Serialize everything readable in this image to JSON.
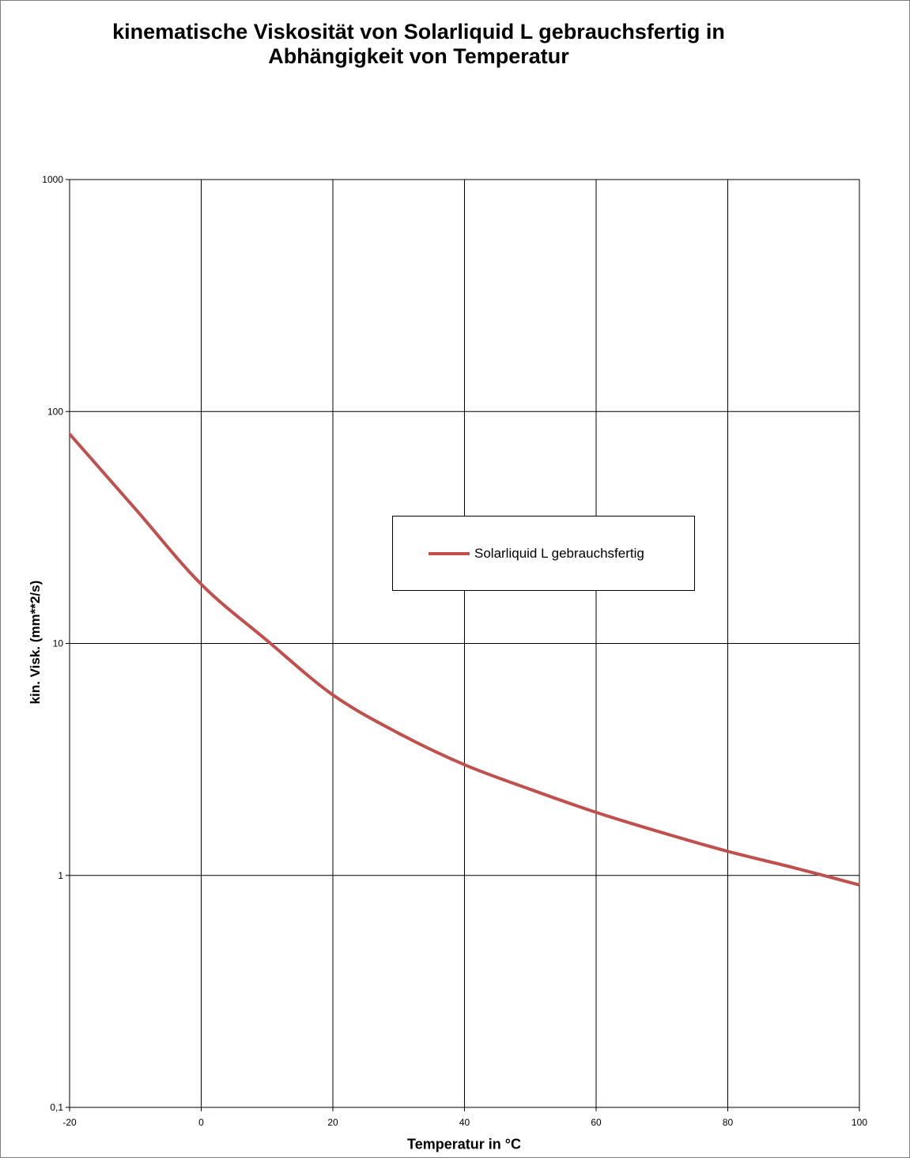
{
  "chart_data": {
    "type": "line",
    "title": "kinematische Viskosität von  Solarliquid L gebrauchsfertig in\nAbhängigkeit von Temperatur",
    "xlabel": "Temperatur in °C",
    "ylabel": "kin. Visk. (mm**2/s)",
    "xlim": [
      -20,
      100
    ],
    "ylim": [
      0.1,
      1000
    ],
    "yscale": "log",
    "grid": true,
    "legend_position": "center",
    "x_ticks": [
      -20,
      0,
      20,
      40,
      60,
      80,
      100
    ],
    "x_tick_labels": [
      "-20",
      "0",
      "20",
      "40",
      "60",
      "80",
      "100"
    ],
    "y_ticks": [
      0.1,
      1,
      10,
      100,
      1000
    ],
    "y_tick_labels": [
      "0,1",
      "1",
      "10",
      "100",
      "1000"
    ],
    "series": [
      {
        "name": "Solarliquid L gebrauchsfertig",
        "color": "#c0504d",
        "x": [
          -20,
          -10,
          0,
          10,
          20,
          30,
          40,
          50,
          60,
          70,
          80,
          90,
          100
        ],
        "y": [
          80,
          38,
          18,
          10.3,
          6,
          4.1,
          3,
          2.35,
          1.87,
          1.53,
          1.27,
          1.08,
          0.91
        ]
      }
    ]
  }
}
